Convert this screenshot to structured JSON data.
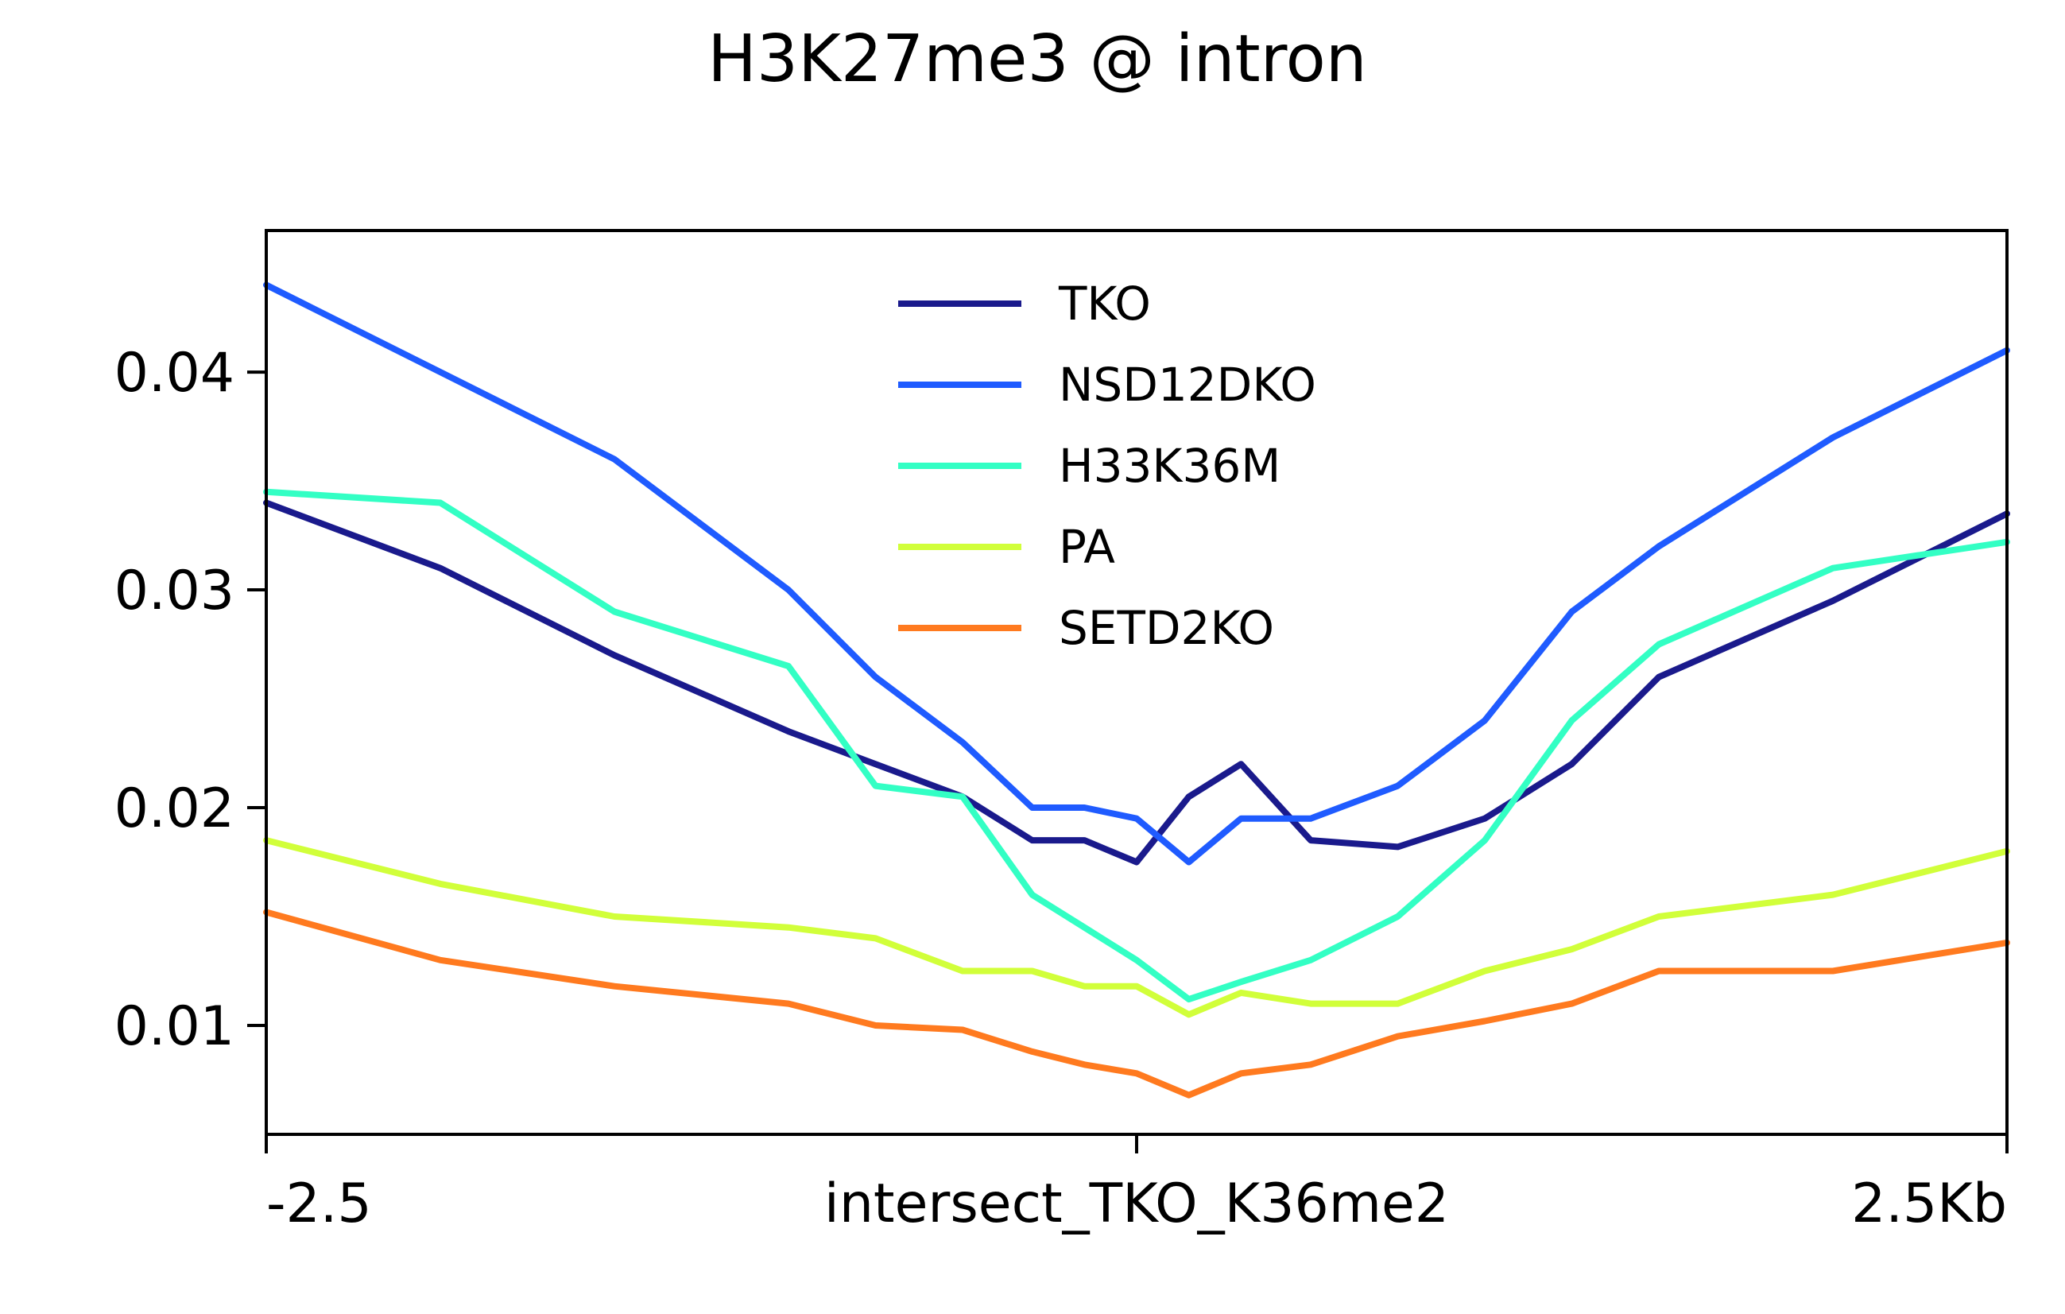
{
  "chart_data": {
    "type": "line",
    "title": "H3K27me3 @ intron",
    "xlabel": "",
    "ylabel": "",
    "x_tick_labels": [
      "-2.5",
      "intersect_TKO_K36me2",
      "2.5Kb"
    ],
    "x_tick_positions": [
      -2.5,
      0,
      2.5
    ],
    "xlim": [
      -2.5,
      2.5
    ],
    "ylim": [
      0.005,
      0.0465
    ],
    "y_ticks": [
      0.01,
      0.02,
      0.03,
      0.04
    ],
    "y_tick_labels": [
      "0.01",
      "0.02",
      "0.03",
      "0.04"
    ],
    "grid": false,
    "legend_position": "top-center",
    "x": [
      -2.5,
      -2.0,
      -1.5,
      -1.0,
      -0.75,
      -0.5,
      -0.3,
      -0.15,
      0.0,
      0.15,
      0.3,
      0.5,
      0.75,
      1.0,
      1.25,
      1.5,
      2.0,
      2.5
    ],
    "series": [
      {
        "name": "TKO",
        "color": "#1a1a8c",
        "values": [
          0.034,
          0.031,
          0.027,
          0.0235,
          0.022,
          0.0205,
          0.0185,
          0.0185,
          0.0175,
          0.0205,
          0.022,
          0.0185,
          0.0182,
          0.0195,
          0.022,
          0.026,
          0.0295,
          0.0335
        ]
      },
      {
        "name": "NSD12DKO",
        "color": "#1f5bff",
        "values": [
          0.044,
          0.04,
          0.036,
          0.03,
          0.026,
          0.023,
          0.02,
          0.02,
          0.0195,
          0.0175,
          0.0195,
          0.0195,
          0.021,
          0.024,
          0.029,
          0.032,
          0.037,
          0.041
        ]
      },
      {
        "name": "H33K36M",
        "color": "#33ffc4",
        "values": [
          0.0345,
          0.034,
          0.029,
          0.0265,
          0.021,
          0.0205,
          0.016,
          0.0145,
          0.013,
          0.0112,
          0.012,
          0.013,
          0.015,
          0.0185,
          0.024,
          0.0275,
          0.031,
          0.0322
        ]
      },
      {
        "name": "PA",
        "color": "#d1ff3a",
        "values": [
          0.0185,
          0.0165,
          0.015,
          0.0145,
          0.014,
          0.0125,
          0.0125,
          0.0118,
          0.0118,
          0.0105,
          0.0115,
          0.011,
          0.011,
          0.0125,
          0.0135,
          0.015,
          0.016,
          0.018
        ]
      },
      {
        "name": "SETD2KO",
        "color": "#ff7a1f",
        "values": [
          0.0152,
          0.013,
          0.0118,
          0.011,
          0.01,
          0.0098,
          0.0088,
          0.0082,
          0.0078,
          0.0068,
          0.0078,
          0.0082,
          0.0095,
          0.0102,
          0.011,
          0.0125,
          0.0125,
          0.0138
        ]
      }
    ]
  }
}
